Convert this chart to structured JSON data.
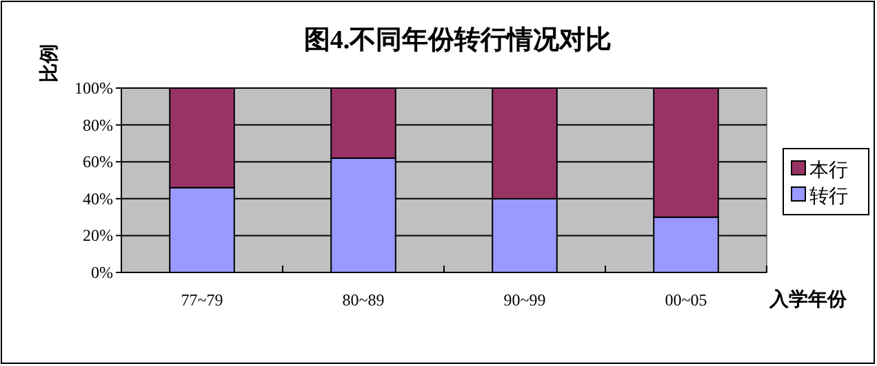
{
  "chart_data": {
    "type": "bar",
    "title": "图4.不同年份转行情况对比",
    "xlabel": "入学年份",
    "ylabel": "比例",
    "categories": [
      "77~79",
      "80~89",
      "90~99",
      "00~05"
    ],
    "stacked": true,
    "series": [
      {
        "name": "转行",
        "color": "#9999ff",
        "values": [
          46,
          62,
          40,
          30
        ]
      },
      {
        "name": "本行",
        "color": "#993366",
        "values": [
          54,
          38,
          60,
          70
        ]
      }
    ],
    "ylim": [
      0,
      100
    ],
    "yticks": [
      {
        "value": 0,
        "label": "0%"
      },
      {
        "value": 20,
        "label": "20%"
      },
      {
        "value": 40,
        "label": "40%"
      },
      {
        "value": 60,
        "label": "60%"
      },
      {
        "value": 80,
        "label": "80%"
      },
      {
        "value": 100,
        "label": "100%"
      }
    ],
    "grid": "y",
    "legend": "right"
  }
}
